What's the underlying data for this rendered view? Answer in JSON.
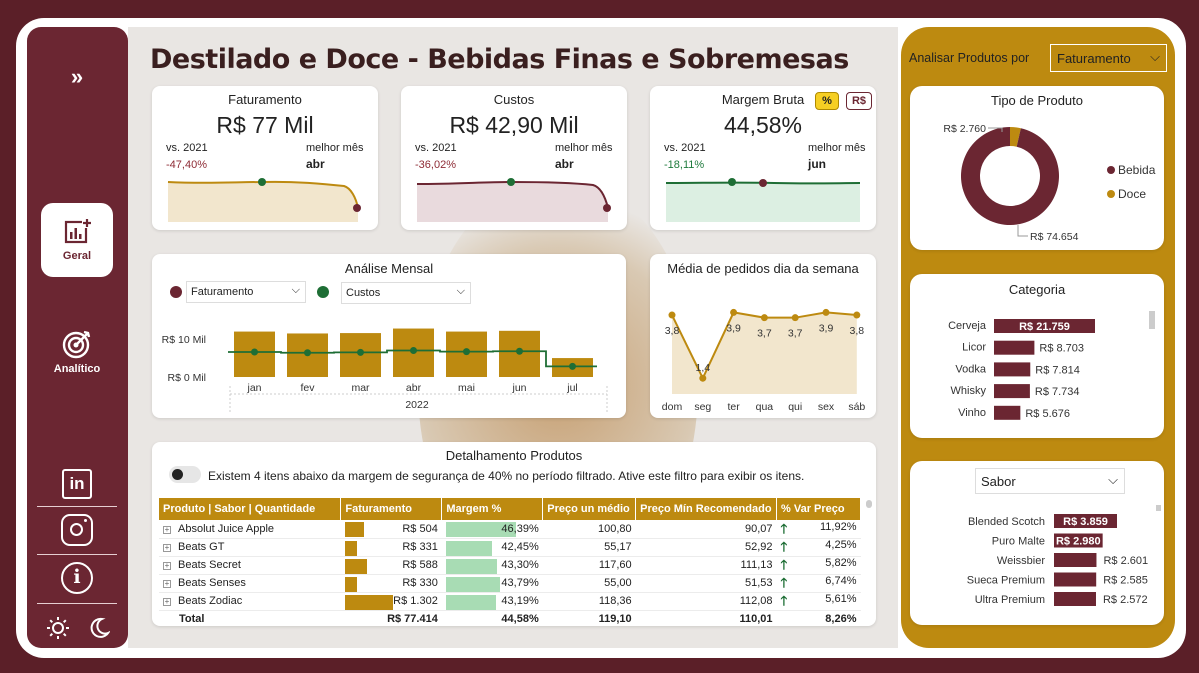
{
  "page_title": "Destilado e Doce - Bebidas Finas e Sobremesas",
  "sidebar": {
    "nav": [
      {
        "label": "Geral",
        "icon": "report-add-icon"
      },
      {
        "label": "Analítico",
        "icon": "target-icon"
      }
    ],
    "social": [
      "linkedin-icon",
      "instagram-icon",
      "info-icon"
    ],
    "theme": [
      "sun-icon",
      "moon-icon"
    ]
  },
  "kpis": [
    {
      "title": "Faturamento",
      "value": "R$ 77 Mil",
      "vs_label": "vs. 2021",
      "vs_value": "-47,40%",
      "best_label": "melhor mês",
      "best_value": "abr"
    },
    {
      "title": "Custos",
      "value": "R$ 42,90 Mil",
      "vs_label": "vs. 2021",
      "vs_value": "-36,02%",
      "best_label": "melhor mês",
      "best_value": "abr"
    },
    {
      "title": "Margem Bruta",
      "value": "44,58%",
      "vs_label": "vs. 2021",
      "vs_value": "-18,11%",
      "best_label": "melhor mês",
      "best_value": "jun",
      "toggle": [
        "%",
        "R$"
      ]
    }
  ],
  "monthly": {
    "title": "Análise Mensal",
    "select1": "Faturamento",
    "select2": "Custos",
    "y_ticks": [
      "R$ 10 Mil",
      "R$ 0 Mil"
    ],
    "year": "2022",
    "chart_data": {
      "type": "bar",
      "categories": [
        "jan",
        "fev",
        "mar",
        "abr",
        "mai",
        "jun",
        "jul"
      ],
      "series": [
        {
          "name": "Faturamento",
          "values": [
            12.0,
            11.5,
            11.6,
            12.8,
            12.0,
            12.2,
            5.0
          ]
        },
        {
          "name": "Custos",
          "values": [
            6.6,
            6.4,
            6.5,
            7.0,
            6.7,
            6.8,
            2.8
          ]
        }
      ],
      "ylim": [
        0,
        14
      ]
    }
  },
  "weekday": {
    "title": "Média de pedidos dia da semana",
    "chart_data": {
      "type": "area",
      "categories": [
        "dom",
        "seg",
        "ter",
        "qua",
        "qui",
        "sex",
        "sáb"
      ],
      "values": [
        3.8,
        1.4,
        3.9,
        3.7,
        3.7,
        3.9,
        3.8
      ],
      "labels": [
        "3,8",
        "1,4",
        "3,9",
        "3,7",
        "3,7",
        "3,9",
        "3,8"
      ],
      "ylim": [
        0.8,
        4.6
      ]
    }
  },
  "details": {
    "title": "Detalhamento Produtos",
    "notice": "Existem 4 itens abaixo da margem de segurança de 40% no período filtrado. Ative este filtro para exibir os itens.",
    "columns": [
      "Produto | Sabor | Quantidade",
      "Faturamento",
      "Margem %",
      "Preço un médio",
      "Preço Mín Recomendado",
      "% Var Preço"
    ],
    "rows": [
      {
        "name": "Absolut Juice Apple",
        "fat": "R$ 504",
        "fat_v": 504,
        "margem": "46,39%",
        "margem_v": 46.39,
        "preco": "100,80",
        "min": "90,07",
        "var": "11,92%"
      },
      {
        "name": "Beats GT",
        "fat": "R$ 331",
        "fat_v": 331,
        "margem": "42,45%",
        "margem_v": 42.45,
        "preco": "55,17",
        "min": "52,92",
        "var": "4,25%"
      },
      {
        "name": "Beats Secret",
        "fat": "R$ 588",
        "fat_v": 588,
        "margem": "43,30%",
        "margem_v": 43.3,
        "preco": "117,60",
        "min": "111,13",
        "var": "5,82%"
      },
      {
        "name": "Beats Senses",
        "fat": "R$ 330",
        "fat_v": 330,
        "margem": "43,79%",
        "margem_v": 43.79,
        "preco": "55,00",
        "min": "51,53",
        "var": "6,74%"
      },
      {
        "name": "Beats Zodiac",
        "fat": "R$ 1.302",
        "fat_v": 1302,
        "margem": "43,19%",
        "margem_v": 43.19,
        "preco": "118,36",
        "min": "112,08",
        "var": "5,61%"
      }
    ],
    "total": {
      "label": "Total",
      "fat": "R$ 77.414",
      "margem": "44,58%",
      "preco": "119,10",
      "min": "110,01",
      "var": "8,26%"
    }
  },
  "right": {
    "analyze_label": "Analisar Produtos por",
    "analyze_value": "Faturamento",
    "tipo": {
      "title": "Tipo de Produto",
      "chart_data": {
        "type": "pie",
        "categories": [
          "Bebida",
          "Doce"
        ],
        "values": [
          74654,
          2760
        ],
        "labels": [
          "R$ 74.654",
          "R$ 2.760"
        ]
      }
    },
    "categoria": {
      "title": "Categoria",
      "chart_data": {
        "type": "bar",
        "categories": [
          "Cerveja",
          "Licor",
          "Vodka",
          "Whisky",
          "Vinho"
        ],
        "values": [
          21759,
          8703,
          7814,
          7734,
          5676
        ],
        "labels": [
          "R$ 21.759",
          "R$ 8.703",
          "R$ 7.814",
          "R$ 7.734",
          "R$ 5.676"
        ]
      }
    },
    "sabor": {
      "select": "Sabor",
      "chart_data": {
        "type": "bar",
        "categories": [
          "Blended Scotch",
          "Puro Malte",
          "Weissbier",
          "Sueca Premium",
          "Ultra Premium"
        ],
        "values": [
          3859,
          2980,
          2601,
          2585,
          2572
        ],
        "labels": [
          "R$ 3.859",
          "R$ 2.980",
          "R$ 2.601",
          "R$ 2.585",
          "R$ 2.572"
        ]
      }
    }
  },
  "colors": {
    "wine": "#6b2632",
    "gold": "#bd8a10",
    "green": "#1e6e35",
    "margin_bar": "#a8dcb4"
  }
}
